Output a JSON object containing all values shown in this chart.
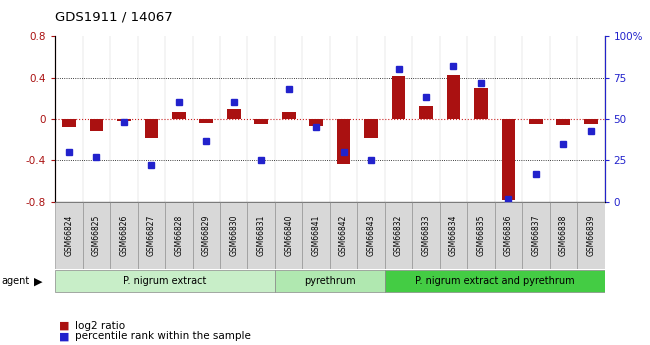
{
  "title": "GDS1911 / 14067",
  "samples": [
    "GSM66824",
    "GSM66825",
    "GSM66826",
    "GSM66827",
    "GSM66828",
    "GSM66829",
    "GSM66830",
    "GSM66831",
    "GSM66840",
    "GSM66841",
    "GSM66842",
    "GSM66843",
    "GSM66832",
    "GSM66833",
    "GSM66834",
    "GSM66835",
    "GSM66836",
    "GSM66837",
    "GSM66838",
    "GSM66839"
  ],
  "log2_ratio": [
    -0.08,
    -0.12,
    -0.02,
    -0.18,
    0.07,
    -0.04,
    0.1,
    -0.05,
    0.07,
    -0.07,
    -0.43,
    -0.18,
    0.42,
    0.13,
    0.43,
    0.3,
    -0.78,
    -0.05,
    -0.06,
    -0.05
  ],
  "percentile": [
    30,
    27,
    48,
    22,
    60,
    37,
    60,
    25,
    68,
    45,
    30,
    25,
    80,
    63,
    82,
    72,
    2,
    17,
    35,
    43
  ],
  "group_bounds": [
    [
      0,
      8,
      "P. nigrum extract",
      "#c8eec8"
    ],
    [
      8,
      12,
      "pyrethrum",
      "#b0e8b0"
    ],
    [
      12,
      20,
      "P. nigrum extract and pyrethrum",
      "#44cc44"
    ]
  ],
  "ylim_left": [
    -0.8,
    0.8
  ],
  "ylim_right": [
    0,
    100
  ],
  "bar_color": "#aa1111",
  "dot_color": "#2222cc",
  "hline_color": "#cc2222",
  "legend_bar": "log2 ratio",
  "legend_dot": "percentile rank within the sample",
  "yticks_left": [
    -0.8,
    -0.4,
    0.0,
    0.4,
    0.8
  ],
  "yticks_right": [
    0,
    25,
    50,
    75,
    100
  ],
  "ytick_labels_left": [
    "-0.8",
    "-0.4",
    "0",
    "0.4",
    "0.8"
  ],
  "ytick_labels_right": [
    "0",
    "25",
    "50",
    "75",
    "100%"
  ]
}
